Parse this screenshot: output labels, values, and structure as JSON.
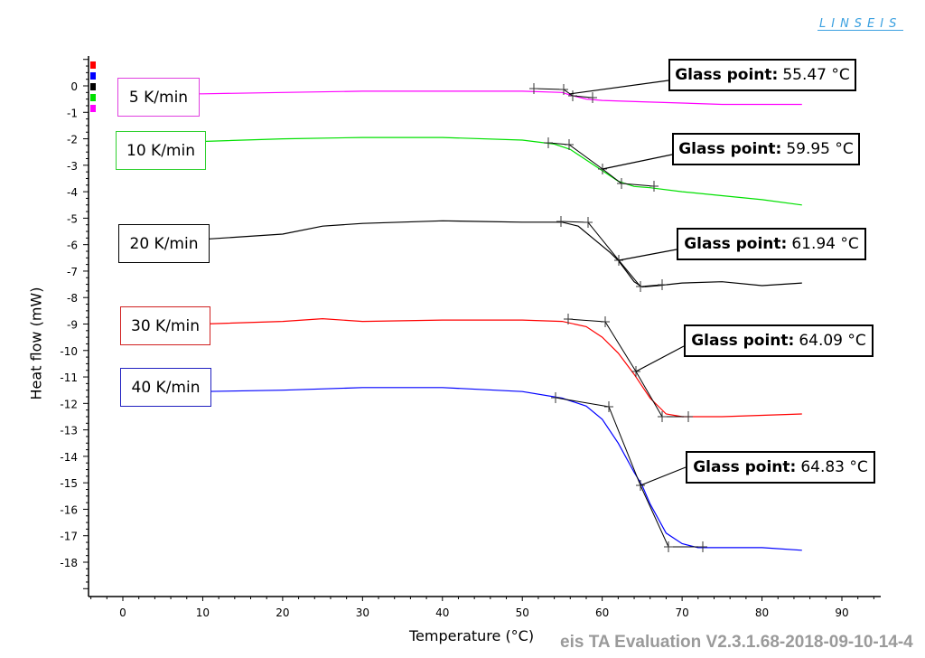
{
  "header": {
    "logo": "LINSEIS"
  },
  "footer": {
    "text": "eis TA Evaluation V2.3.1.68-2018-09-10-14-4"
  },
  "axes": {
    "xlabel": "Temperature (°C)",
    "ylabel": "Heat flow (mW)"
  },
  "legend_swatches": [
    {
      "color": "#ff0000"
    },
    {
      "color": "#0000ff"
    },
    {
      "color": "#000000"
    },
    {
      "color": "#00e000"
    },
    {
      "color": "#ff00ff"
    }
  ],
  "series_labels": [
    {
      "text": "5 K/min",
      "color": "#e040e0"
    },
    {
      "text": "10 K/min",
      "color": "#30d030"
    },
    {
      "text": "20 K/min",
      "color": "#000000"
    },
    {
      "text": "30 K/min",
      "color": "#d02020"
    },
    {
      "text": "40 K/min",
      "color": "#2020c0"
    }
  ],
  "glass_points": [
    {
      "label": "Glass point:",
      "value": "55.47 °C"
    },
    {
      "label": "Glass point:",
      "value": "59.95 °C"
    },
    {
      "label": "Glass point:",
      "value": "61.94 °C"
    },
    {
      "label": "Glass point:",
      "value": "64.09 °C"
    },
    {
      "label": "Glass point:",
      "value": "64.83 °C"
    }
  ],
  "chart_data": {
    "type": "line",
    "title": "",
    "xlabel": "Temperature (°C)",
    "ylabel": "Heat flow (mW)",
    "xlim": [
      -4,
      95
    ],
    "ylim": [
      -19.3,
      0.9
    ],
    "x_ticks": [
      0,
      10,
      20,
      30,
      40,
      50,
      60,
      70,
      80,
      90
    ],
    "y_ticks": [
      0,
      -1,
      -2,
      -3,
      -4,
      -5,
      -6,
      -7,
      -8,
      -9,
      -10,
      -11,
      -12,
      -13,
      -14,
      -15,
      -16,
      -17,
      -18
    ],
    "grid": false,
    "series": [
      {
        "name": "5 K/min",
        "color": "#ff00ff",
        "x": [
          10,
          20,
          30,
          40,
          50,
          55,
          56,
          58,
          60,
          65,
          70,
          75,
          80,
          85
        ],
        "y": [
          -0.3,
          -0.25,
          -0.2,
          -0.2,
          -0.2,
          -0.25,
          -0.35,
          -0.5,
          -0.55,
          -0.6,
          -0.65,
          -0.7,
          -0.7,
          -0.7
        ],
        "glass_point_C": 55.47
      },
      {
        "name": "10 K/min",
        "color": "#00e000",
        "x": [
          10,
          20,
          30,
          40,
          50,
          54,
          56,
          58,
          60,
          62,
          64,
          66,
          70,
          75,
          80,
          85
        ],
        "y": [
          -2.1,
          -2.0,
          -1.95,
          -1.95,
          -2.05,
          -2.2,
          -2.4,
          -2.8,
          -3.2,
          -3.6,
          -3.8,
          -3.85,
          -4.0,
          -4.15,
          -4.3,
          -4.5
        ],
        "glass_point_C": 59.95
      },
      {
        "name": "20 K/min",
        "color": "#000000",
        "x": [
          10,
          20,
          25,
          30,
          40,
          50,
          55,
          57,
          59,
          61,
          62,
          63,
          64,
          65,
          67,
          70,
          75,
          80,
          85
        ],
        "y": [
          -5.8,
          -5.6,
          -5.3,
          -5.2,
          -5.1,
          -5.15,
          -5.15,
          -5.3,
          -5.8,
          -6.3,
          -6.6,
          -7.0,
          -7.4,
          -7.6,
          -7.55,
          -7.45,
          -7.4,
          -7.55,
          -7.45
        ],
        "glass_point_C": 61.94
      },
      {
        "name": "30 K/min",
        "color": "#ff0000",
        "x": [
          10,
          20,
          25,
          30,
          40,
          50,
          55,
          58,
          60,
          62,
          64,
          66,
          68,
          70,
          75,
          80,
          85
        ],
        "y": [
          -9.0,
          -8.9,
          -8.8,
          -8.9,
          -8.85,
          -8.85,
          -8.9,
          -9.1,
          -9.5,
          -10.1,
          -10.9,
          -11.8,
          -12.4,
          -12.5,
          -12.5,
          -12.45,
          -12.4
        ],
        "glass_point_C": 64.09
      },
      {
        "name": "40 K/min",
        "color": "#0000ff",
        "x": [
          10,
          20,
          30,
          40,
          50,
          55,
          58,
          60,
          62,
          64,
          65,
          66,
          68,
          70,
          72,
          75,
          80,
          85
        ],
        "y": [
          -11.55,
          -11.5,
          -11.4,
          -11.4,
          -11.55,
          -11.8,
          -12.1,
          -12.6,
          -13.5,
          -14.6,
          -15.1,
          -15.8,
          -16.9,
          -17.3,
          -17.45,
          -17.45,
          -17.45,
          -17.55
        ],
        "glass_point_C": 64.83
      }
    ]
  }
}
